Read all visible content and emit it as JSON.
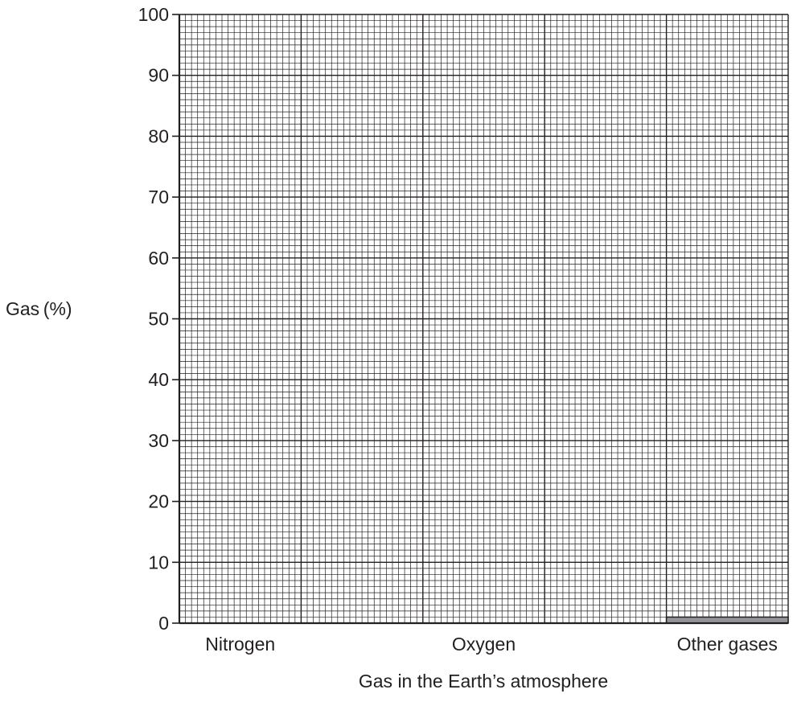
{
  "chart_data": {
    "type": "bar",
    "title": "",
    "xlabel": "Gas in the Earth’s atmosphere",
    "ylabel": "Gas (%)",
    "categories": [
      "Nitrogen",
      "Oxygen",
      "Other gases"
    ],
    "values": [
      null,
      null,
      1
    ],
    "ylim": [
      0,
      100
    ],
    "y_ticks": [
      "0",
      "10",
      "20",
      "30",
      "40",
      "50",
      "60",
      "70",
      "80",
      "90",
      "100"
    ],
    "grid": true,
    "bar_color": "#939598",
    "line_color": "#231f20"
  }
}
